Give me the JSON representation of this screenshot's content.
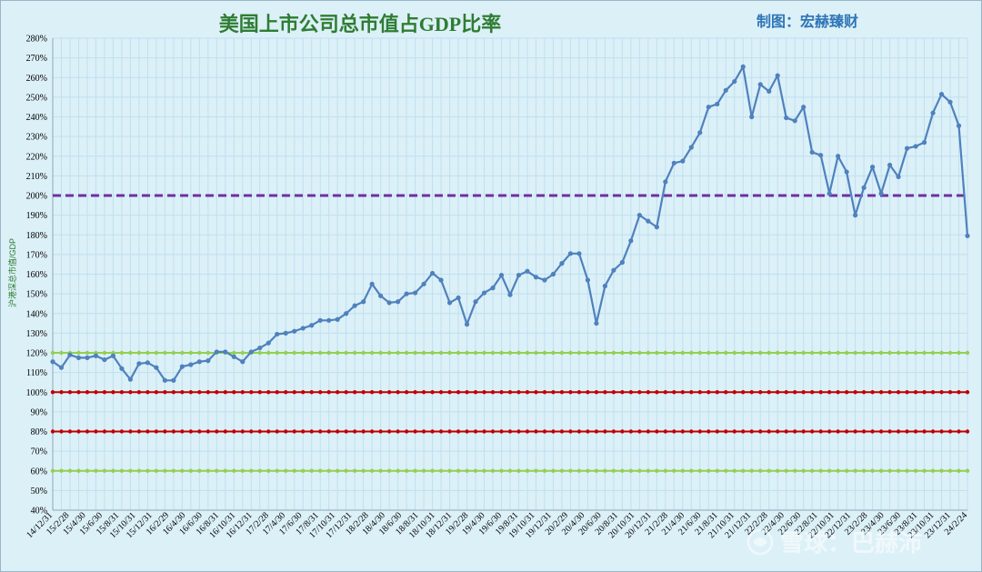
{
  "header": {
    "title": "美国上市公司总市值占GDP比率",
    "credit": "制图：宏赫臻财"
  },
  "watermark": "雪球：巴赫沛",
  "chart_data": {
    "type": "line",
    "title": "美国上市公司总市值占GDP比率",
    "ylabel": "沪港深总市值/GDP",
    "xlabel": "",
    "ylim": [
      0.4,
      2.8
    ],
    "yticks": [
      "40%",
      "50%",
      "60%",
      "70%",
      "80%",
      "90%",
      "100%",
      "110%",
      "120%",
      "130%",
      "140%",
      "150%",
      "160%",
      "170%",
      "180%",
      "190%",
      "200%",
      "210%",
      "220%",
      "230%",
      "240%",
      "250%",
      "260%",
      "270%",
      "280%"
    ],
    "xtick_labels": [
      "14/12/31",
      "15/2/28",
      "15/4/30",
      "15/6/30",
      "15/8/31",
      "15/10/31",
      "15/12/31",
      "16/2/29",
      "16/4/30",
      "16/6/30",
      "16/8/31",
      "16/10/31",
      "16/12/31",
      "17/2/28",
      "17/4/30",
      "17/6/30",
      "17/8/31",
      "17/10/31",
      "17/12/31",
      "18/2/28",
      "18/4/30",
      "18/6/30",
      "18/8/31",
      "18/10/31",
      "18/12/31",
      "19/2/28",
      "19/4/30",
      "19/6/30",
      "19/8/31",
      "19/10/31",
      "19/12/31",
      "20/2/29",
      "20/4/30",
      "20/6/30",
      "20/8/31",
      "20/10/31",
      "20/12/31",
      "21/2/28",
      "21/4/30",
      "21/6/30",
      "21/8/31",
      "21/10/31",
      "21/12/31",
      "22/2/28",
      "22/4/30",
      "22/6/30",
      "22/8/31",
      "22/10/31",
      "22/12/31",
      "23/2/28",
      "23/4/30",
      "23/6/30",
      "23/8/31",
      "23/10/31",
      "23/12/31",
      "24/2/24"
    ],
    "grid": true,
    "colors": {
      "background": "#dcf0f8",
      "main_line": "#4f81bd",
      "ref_200": "#7030a0",
      "ref_120": "#92d050",
      "ref_100": "#c00000",
      "ref_80": "#c00000",
      "ref_60": "#92d050",
      "title": "#2e7d32",
      "credit": "#2e75b6",
      "ylabel": "#2e7d32"
    },
    "series": [
      {
        "values": [
          1.155,
          1.125,
          1.19,
          1.175,
          1.175,
          1.185,
          1.165,
          1.185,
          1.12,
          1.065,
          1.145,
          1.15,
          1.125,
          1.06,
          1.06,
          1.13,
          1.14,
          1.155,
          1.16,
          1.205,
          1.205,
          1.18,
          1.155,
          1.205,
          1.225,
          1.25,
          1.295,
          1.3,
          1.31,
          1.325,
          1.34,
          1.365,
          1.365,
          1.37,
          1.4,
          1.44,
          1.46,
          1.55,
          1.49,
          1.455,
          1.46,
          1.5,
          1.505,
          1.55,
          1.605,
          1.57,
          1.455,
          1.48,
          1.345,
          1.46,
          1.505,
          1.53,
          1.595,
          1.495,
          1.595,
          1.615,
          1.585,
          1.57,
          1.6,
          1.655,
          1.705,
          1.705,
          1.57,
          1.35,
          1.54,
          1.62,
          1.66,
          1.77,
          1.9,
          1.87,
          1.84,
          2.07,
          2.165,
          2.175,
          2.245,
          2.32,
          2.45,
          2.465,
          2.535,
          2.58,
          2.655,
          2.4,
          2.565,
          2.53,
          2.61,
          2.395,
          2.38,
          2.45,
          2.22,
          2.205,
          2.01,
          2.2,
          2.12,
          1.9,
          2.04,
          2.145,
          2.01,
          2.155,
          2.095,
          2.24,
          2.25,
          2.27,
          2.42,
          2.515,
          2.475,
          2.355,
          1.795
        ]
      }
    ],
    "reference_lines": [
      {
        "value": 2.0,
        "style": "dashed"
      },
      {
        "value": 1.2,
        "style": "dotted"
      },
      {
        "value": 1.0,
        "style": "dotted"
      },
      {
        "value": 0.8,
        "style": "dotted"
      },
      {
        "value": 0.6,
        "style": "dotted"
      }
    ]
  }
}
